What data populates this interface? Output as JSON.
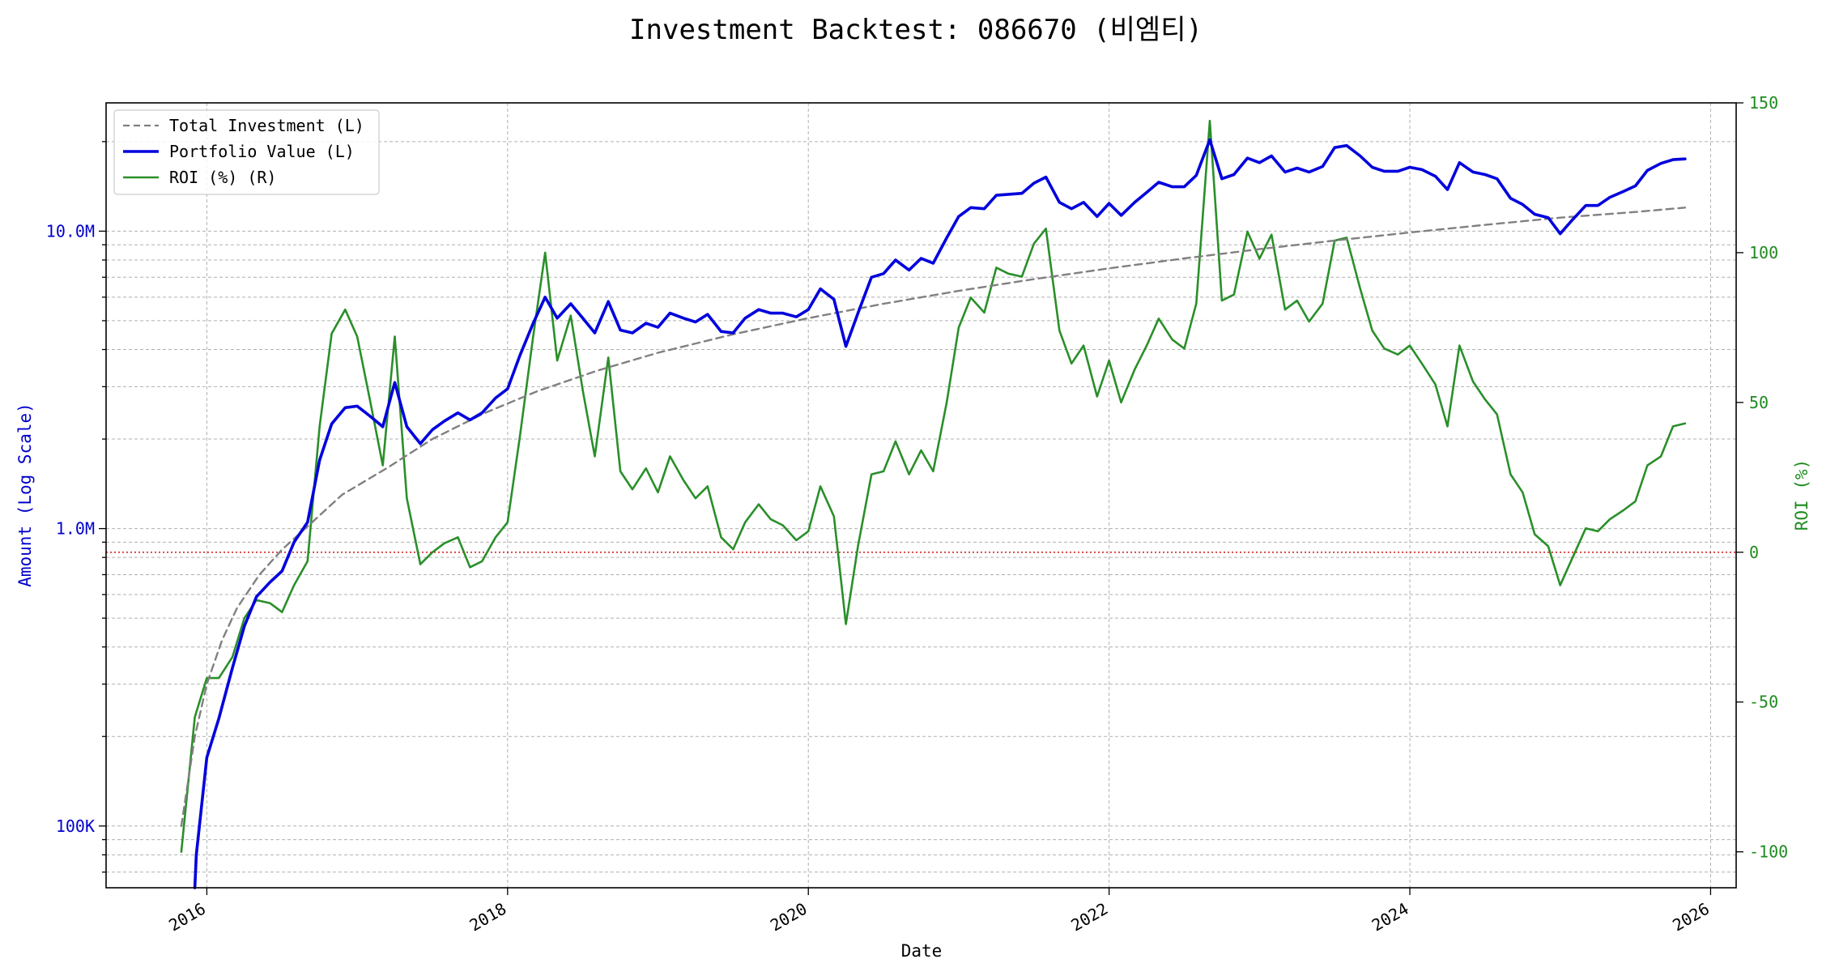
{
  "chart_data": {
    "type": "line",
    "title": "Investment Backtest: 086670 (비엠티)",
    "xlabel": "Date",
    "ylabel_left": "Amount (Log Scale)",
    "ylabel_right": "ROI (%)",
    "left_axis": {
      "scale": "log",
      "ylim": [
        62000,
        27000000
      ],
      "ticks": [
        {
          "value": 100000,
          "label": "100K"
        },
        {
          "value": 1000000,
          "label": "1.0M"
        },
        {
          "value": 10000000,
          "label": "10.0M"
        }
      ]
    },
    "right_axis": {
      "scale": "linear",
      "ylim": [
        -112,
        150
      ],
      "ticks": [
        {
          "value": 150,
          "label": "150"
        },
        {
          "value": 100,
          "label": "100"
        },
        {
          "value": 50,
          "label": "50"
        },
        {
          "value": 0,
          "label": "0"
        },
        {
          "value": -50,
          "label": "-50"
        },
        {
          "value": -100,
          "label": "-100"
        }
      ]
    },
    "x_axis": {
      "range": [
        2015.33,
        2026.17
      ],
      "ticks": [
        {
          "value": 2016,
          "label": "2016"
        },
        {
          "value": 2018,
          "label": "2018"
        },
        {
          "value": 2020,
          "label": "2020"
        },
        {
          "value": 2022,
          "label": "2022"
        },
        {
          "value": 2024,
          "label": "2024"
        },
        {
          "value": 2026,
          "label": "2026"
        }
      ]
    },
    "grid": true,
    "legend_position": "top-left",
    "reference_line": {
      "axis": "right",
      "value": 0,
      "color": "#cc0000",
      "style": "dotted"
    },
    "colors": {
      "investment": "#808080",
      "portfolio": "#0000dd",
      "roi": "#2a8f2a"
    },
    "series": [
      {
        "name": "Total Investment (L)",
        "axis": "left",
        "style": "dashed",
        "x": [
          2015.83,
          2015.92,
          2016.0,
          2016.1,
          2016.2,
          2016.35,
          2016.5,
          2016.7,
          2016.9,
          2017.2,
          2017.5,
          2017.85,
          2018.2,
          2018.6,
          2019.0,
          2019.5,
          2020.0,
          2020.5,
          2021.0,
          2021.5,
          2022.0,
          2022.5,
          2023.0,
          2023.5,
          2024.0,
          2024.5,
          2025.0,
          2025.5,
          2025.83
        ],
        "values": [
          100000,
          200000,
          300000,
          420000,
          540000,
          700000,
          850000,
          1050000,
          1300000,
          1600000,
          2000000,
          2450000,
          2900000,
          3400000,
          3900000,
          4500000,
          5100000,
          5700000,
          6300000,
          6900000,
          7500000,
          8100000,
          8700000,
          9300000,
          9900000,
          10500000,
          11100000,
          11600000,
          12000000
        ]
      },
      {
        "name": "Portfolio Value (L)",
        "axis": "left",
        "style": "solid",
        "x": [
          2015.92,
          2015.93,
          2016.0,
          2016.08,
          2016.17,
          2016.25,
          2016.33,
          2016.42,
          2016.5,
          2016.58,
          2016.67,
          2016.75,
          2016.83,
          2016.92,
          2017.0,
          2017.08,
          2017.17,
          2017.25,
          2017.33,
          2017.42,
          2017.5,
          2017.58,
          2017.67,
          2017.75,
          2017.83,
          2017.92,
          2018.0,
          2018.08,
          2018.17,
          2018.25,
          2018.33,
          2018.42,
          2018.5,
          2018.58,
          2018.67,
          2018.75,
          2018.83,
          2018.92,
          2019.0,
          2019.08,
          2019.17,
          2019.25,
          2019.33,
          2019.42,
          2019.5,
          2019.58,
          2019.67,
          2019.75,
          2019.83,
          2019.92,
          2020.0,
          2020.08,
          2020.17,
          2020.25,
          2020.33,
          2020.42,
          2020.5,
          2020.58,
          2020.67,
          2020.75,
          2020.83,
          2020.92,
          2021.0,
          2021.08,
          2021.17,
          2021.25,
          2021.33,
          2021.42,
          2021.5,
          2021.58,
          2021.67,
          2021.75,
          2021.83,
          2021.92,
          2022.0,
          2022.08,
          2022.17,
          2022.25,
          2022.33,
          2022.42,
          2022.5,
          2022.58,
          2022.67,
          2022.75,
          2022.83,
          2022.92,
          2023.0,
          2023.08,
          2023.17,
          2023.25,
          2023.33,
          2023.42,
          2023.5,
          2023.58,
          2023.67,
          2023.75,
          2023.83,
          2023.92,
          2024.0,
          2024.08,
          2024.17,
          2024.25,
          2024.33,
          2024.42,
          2024.5,
          2024.58,
          2024.67,
          2024.75,
          2024.83,
          2024.92,
          2025.0,
          2025.08,
          2025.17,
          2025.25,
          2025.33,
          2025.42,
          2025.5,
          2025.58,
          2025.67,
          2025.75,
          2025.83
        ],
        "values": [
          62000,
          80000,
          170000,
          230000,
          340000,
          470000,
          590000,
          660000,
          720000,
          900000,
          1050000,
          1700000,
          2250000,
          2550000,
          2580000,
          2400000,
          2200000,
          3100000,
          2200000,
          1930000,
          2150000,
          2300000,
          2450000,
          2320000,
          2450000,
          2750000,
          2950000,
          3800000,
          4900000,
          6000000,
          5100000,
          5700000,
          5100000,
          4550000,
          5800000,
          4650000,
          4550000,
          4900000,
          4750000,
          5300000,
          5100000,
          4950000,
          5250000,
          4600000,
          4550000,
          5100000,
          5450000,
          5300000,
          5300000,
          5150000,
          5450000,
          6400000,
          5900000,
          4100000,
          5300000,
          7000000,
          7200000,
          8000000,
          7400000,
          8100000,
          7800000,
          9500000,
          11200000,
          12000000,
          11900000,
          13200000,
          13300000,
          13400000,
          14500000,
          15200000,
          12500000,
          11900000,
          12500000,
          11200000,
          12400000,
          11300000,
          12500000,
          13500000,
          14600000,
          14100000,
          14100000,
          15400000,
          20300000,
          15000000,
          15500000,
          17600000,
          17000000,
          17900000,
          15800000,
          16300000,
          15800000,
          16500000,
          19100000,
          19400000,
          17900000,
          16400000,
          15900000,
          15900000,
          16400000,
          16100000,
          15300000,
          13800000,
          17000000,
          15800000,
          15500000,
          15000000,
          12900000,
          12300000,
          11400000,
          11100000,
          9800000,
          10900000,
          12200000,
          12200000,
          13000000,
          13600000,
          14200000,
          16000000,
          16900000,
          17400000,
          17500000
        ]
      },
      {
        "name": "ROI (%) (R)",
        "axis": "right",
        "style": "solid",
        "x": [
          2015.83,
          2015.92,
          2016.0,
          2016.08,
          2016.17,
          2016.25,
          2016.33,
          2016.42,
          2016.5,
          2016.58,
          2016.67,
          2016.75,
          2016.83,
          2016.92,
          2017.0,
          2017.08,
          2017.17,
          2017.25,
          2017.33,
          2017.42,
          2017.5,
          2017.58,
          2017.67,
          2017.75,
          2017.83,
          2017.92,
          2018.0,
          2018.08,
          2018.17,
          2018.25,
          2018.33,
          2018.42,
          2018.5,
          2018.58,
          2018.67,
          2018.75,
          2018.83,
          2018.92,
          2019.0,
          2019.08,
          2019.17,
          2019.25,
          2019.33,
          2019.42,
          2019.5,
          2019.58,
          2019.67,
          2019.75,
          2019.83,
          2019.92,
          2020.0,
          2020.08,
          2020.17,
          2020.25,
          2020.33,
          2020.42,
          2020.5,
          2020.58,
          2020.67,
          2020.75,
          2020.83,
          2020.92,
          2021.0,
          2021.08,
          2021.17,
          2021.25,
          2021.33,
          2021.42,
          2021.5,
          2021.58,
          2021.67,
          2021.75,
          2021.83,
          2021.92,
          2022.0,
          2022.08,
          2022.17,
          2022.25,
          2022.33,
          2022.42,
          2022.5,
          2022.58,
          2022.67,
          2022.75,
          2022.83,
          2022.92,
          2023.0,
          2023.08,
          2023.17,
          2023.25,
          2023.33,
          2023.42,
          2023.5,
          2023.58,
          2023.67,
          2023.75,
          2023.83,
          2023.92,
          2024.0,
          2024.08,
          2024.17,
          2024.25,
          2024.33,
          2024.42,
          2024.5,
          2024.58,
          2024.67,
          2024.75,
          2024.83,
          2024.92,
          2025.0,
          2025.08,
          2025.17,
          2025.25,
          2025.33,
          2025.42,
          2025.5,
          2025.58,
          2025.67,
          2025.75,
          2025.83
        ],
        "values": [
          -100,
          -55,
          -42,
          -42,
          -35,
          -22,
          -16,
          -17,
          -20,
          -11,
          -3,
          42,
          73,
          81,
          72,
          52,
          29,
          72,
          18,
          -4,
          0,
          3,
          5,
          -5,
          -3,
          5,
          10,
          38,
          72,
          100,
          64,
          79,
          54,
          32,
          65,
          27,
          21,
          28,
          20,
          32,
          24,
          18,
          22,
          5,
          1,
          10,
          16,
          11,
          9,
          4,
          7,
          22,
          12,
          -24,
          2,
          26,
          27,
          37,
          26,
          34,
          27,
          50,
          75,
          85,
          80,
          95,
          93,
          92,
          103,
          108,
          74,
          63,
          69,
          52,
          64,
          50,
          61,
          69,
          78,
          71,
          68,
          83,
          144,
          84,
          86,
          107,
          98,
          106,
          81,
          84,
          77,
          83,
          104,
          105,
          88,
          74,
          68,
          66,
          69,
          63,
          56,
          42,
          69,
          57,
          51,
          46,
          26,
          20,
          6,
          2,
          -11,
          -2,
          8,
          7,
          11,
          14,
          17,
          29,
          32,
          42,
          43
        ]
      }
    ]
  }
}
